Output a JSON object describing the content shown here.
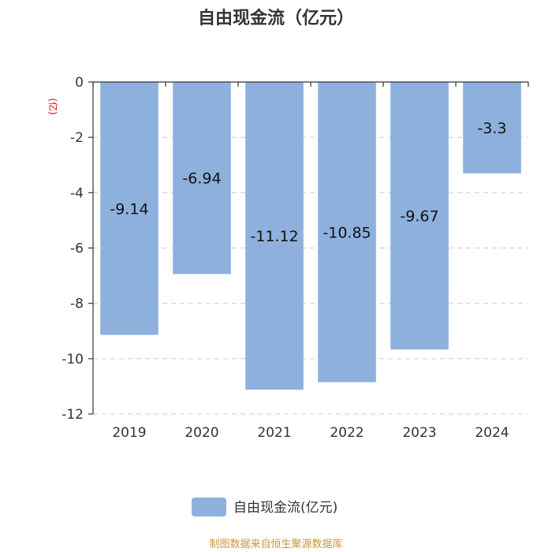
{
  "chart_data": {
    "type": "bar",
    "title": "自由现金流（亿元）",
    "ylabel": "(亿)",
    "categories": [
      "2019",
      "2020",
      "2021",
      "2022",
      "2023",
      "2024"
    ],
    "series": [
      {
        "name": "自由现金流(亿元)",
        "values": [
          -9.14,
          -6.94,
          -11.12,
          -10.85,
          -9.67,
          -3.3
        ]
      }
    ],
    "data_labels": [
      "-9.14",
      "-6.94",
      "-11.12",
      "-10.85",
      "-9.67",
      "-3.3"
    ],
    "ylim": [
      -12,
      0
    ],
    "yticks": [
      0,
      -2,
      -4,
      -6,
      -8,
      -10,
      -12
    ],
    "ytick_labels": [
      "0",
      "-2",
      "-4",
      "-6",
      "-8",
      "-10",
      "-12"
    ],
    "grid": true,
    "legend_position": "bottom",
    "bar_color": "#8eb0dd",
    "source": "制图数据来自恒生聚源数据库"
  }
}
